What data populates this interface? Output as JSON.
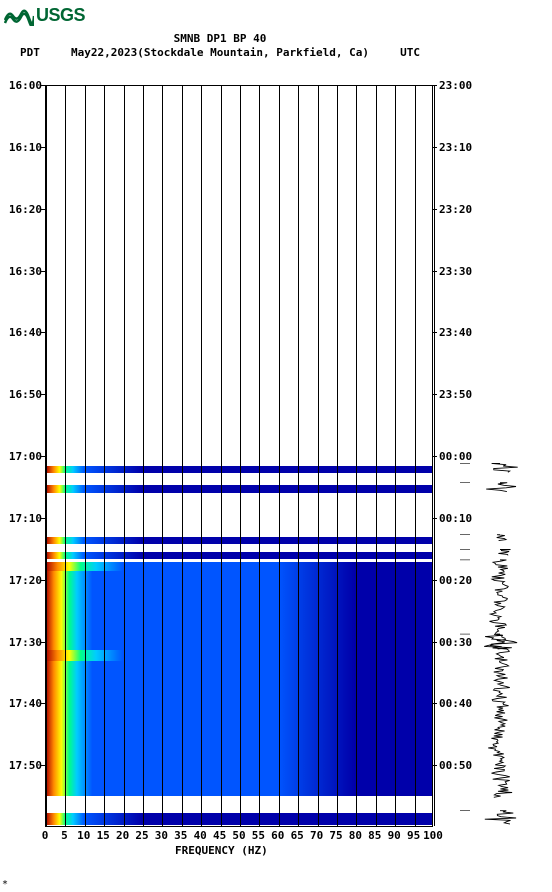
{
  "logo_text": "USGS",
  "logo_color": "#006633",
  "title_line1": "SMNB DP1 BP 40",
  "header_left": "PDT",
  "header_date": "May22,2023",
  "header_location": "(Stockdale Mountain, Parkfield, Ca)",
  "header_right": "UTC",
  "xaxis": {
    "label": "FREQUENCY (HZ)",
    "min": 0,
    "max": 100,
    "ticks": [
      0,
      5,
      10,
      15,
      20,
      25,
      30,
      35,
      40,
      45,
      50,
      55,
      60,
      65,
      70,
      75,
      80,
      85,
      90,
      95,
      100
    ],
    "fontsize": 11
  },
  "yaxis_left": {
    "ticks": [
      "16:00",
      "16:10",
      "16:20",
      "16:30",
      "16:40",
      "16:50",
      "17:00",
      "17:10",
      "17:20",
      "17:30",
      "17:40",
      "17:50"
    ],
    "positions_pct": [
      0,
      8.33,
      16.67,
      25,
      33.33,
      41.67,
      50,
      58.33,
      66.67,
      75,
      83.33,
      91.67
    ],
    "fontsize": 11
  },
  "yaxis_right": {
    "ticks": [
      "23:00",
      "23:10",
      "23:20",
      "23:30",
      "23:40",
      "23:50",
      "00:00",
      "00:10",
      "00:20",
      "00:30",
      "00:40",
      "00:50"
    ],
    "positions_pct": [
      0,
      8.33,
      16.67,
      25,
      33.33,
      41.67,
      50,
      58.33,
      66.67,
      75,
      83.33,
      91.67
    ],
    "fontsize": 11
  },
  "colormap": {
    "low": "#0000aa",
    "mid_low": "#0055ff",
    "mid": "#00ccff",
    "mid_high": "#00ff88",
    "high": "#ffff00",
    "very_high": "#ff8800",
    "max": "#aa0000"
  },
  "background_color": "#ffffff",
  "plot_border_color": "#000000",
  "data_bands": [
    {
      "top_pct": 51.2,
      "height_pct": 1.0,
      "type": "full",
      "intensity": "high"
    },
    {
      "top_pct": 53.8,
      "height_pct": 1.0,
      "type": "full",
      "intensity": "med"
    },
    {
      "top_pct": 60.8,
      "height_pct": 0.9,
      "type": "full",
      "intensity": "med"
    },
    {
      "top_pct": 62.8,
      "height_pct": 0.9,
      "type": "full",
      "intensity": "med"
    },
    {
      "top_pct": 64.2,
      "height_pct": 31.5,
      "type": "block",
      "intensity": "block"
    },
    {
      "top_pct": 98.0,
      "height_pct": 1.6,
      "type": "full",
      "intensity": "high"
    }
  ],
  "seismogram": {
    "segments": [
      {
        "top_pct": 51.0,
        "height_pct": 1.2,
        "amp": 0.6
      },
      {
        "top_pct": 53.6,
        "height_pct": 1.2,
        "amp": 0.5
      },
      {
        "top_pct": 60.6,
        "height_pct": 0.8,
        "amp": 0.5
      },
      {
        "top_pct": 62.6,
        "height_pct": 0.8,
        "amp": 0.4
      },
      {
        "top_pct": 64.0,
        "height_pct": 32.0,
        "amp": 0.35
      },
      {
        "top_pct": 74.0,
        "height_pct": 2.0,
        "amp": 0.7
      },
      {
        "top_pct": 97.8,
        "height_pct": 1.8,
        "amp": 0.6
      }
    ],
    "color": "#000000"
  },
  "footer_mark": "*"
}
